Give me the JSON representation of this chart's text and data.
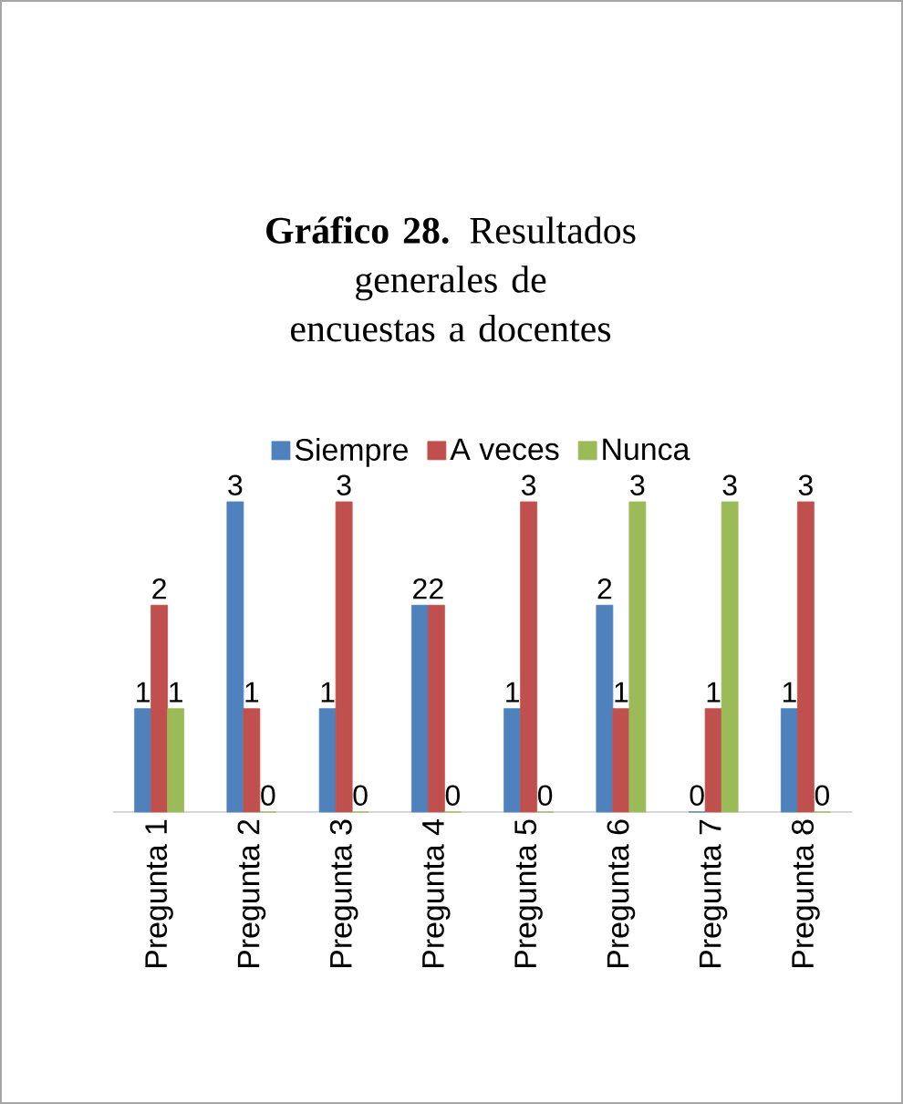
{
  "chart_data": {
    "type": "bar",
    "title": "**Gráfico 28.** Resultados generales de encuestas a docentes",
    "categories": [
      "Pregunta 1",
      "Pregunta 2",
      "Pregunta 3",
      "Pregunta 4",
      "Pregunta 5",
      "Pregunta 6",
      "Pregunta 7",
      "Pregunta 8"
    ],
    "series": [
      {
        "name": "Siempre",
        "color": "#4f81bd",
        "values": [
          1,
          3,
          1,
          2,
          1,
          2,
          0,
          1
        ]
      },
      {
        "name": "A veces",
        "color": "#c0504d",
        "values": [
          2,
          1,
          3,
          2,
          3,
          1,
          1,
          3
        ]
      },
      {
        "name": "Nunca",
        "color": "#9bbb59",
        "values": [
          1,
          0,
          0,
          0,
          0,
          3,
          3,
          0
        ]
      }
    ],
    "data_labels": true,
    "legend": "top"
  }
}
